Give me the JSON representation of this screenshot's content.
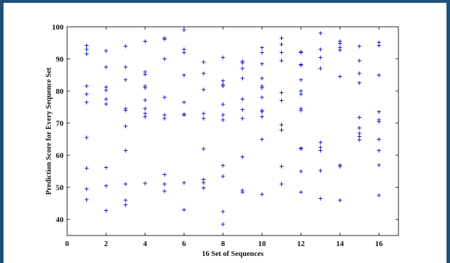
{
  "chart_data": {
    "type": "scatter",
    "title": "",
    "xlabel": "16 Set of Sequences",
    "ylabel": "Prediction Score for Every Sequence Set",
    "xlim": [
      0,
      17
    ],
    "ylim": [
      35,
      100
    ],
    "xticks": [
      0,
      2,
      4,
      6,
      8,
      10,
      12,
      14,
      16
    ],
    "yticks": [
      40,
      50,
      60,
      70,
      80,
      90,
      100
    ],
    "grid": false,
    "marker": "+",
    "marker_color": "#1a1acc",
    "series": [
      {
        "points": [
          [
            1,
            94.2
          ],
          [
            1,
            93
          ],
          [
            1,
            91.5
          ],
          [
            1,
            81.5
          ],
          [
            1,
            79
          ],
          [
            1,
            76.5
          ],
          [
            1,
            65.5
          ],
          [
            1,
            56
          ],
          [
            1,
            49.5
          ],
          [
            1,
            46.2
          ],
          [
            2,
            92.5
          ],
          [
            2,
            87.5
          ],
          [
            2,
            81.2
          ],
          [
            2,
            80.2
          ],
          [
            2,
            77.5
          ],
          [
            2,
            76
          ],
          [
            2,
            56.2
          ],
          [
            2,
            50.5
          ],
          [
            2,
            42.8
          ],
          [
            3,
            94
          ],
          [
            3,
            87.5
          ],
          [
            3,
            83.5
          ],
          [
            3,
            74.5
          ],
          [
            3,
            74
          ],
          [
            3,
            69
          ],
          [
            3,
            61.5
          ],
          [
            3,
            51
          ],
          [
            3,
            46
          ],
          [
            3,
            44.5
          ],
          [
            4,
            95.5
          ],
          [
            4,
            86
          ],
          [
            4,
            85.2
          ],
          [
            4,
            81.5
          ],
          [
            4,
            81
          ],
          [
            4,
            77.2
          ],
          [
            4,
            74.5
          ],
          [
            4,
            73
          ],
          [
            4,
            72
          ],
          [
            4,
            51.2
          ],
          [
            5,
            96.5
          ],
          [
            5,
            96.2
          ],
          [
            5,
            90
          ],
          [
            5,
            78
          ],
          [
            5,
            72.5
          ],
          [
            5,
            71.5
          ],
          [
            5,
            54
          ],
          [
            5,
            51
          ],
          [
            5,
            48.8
          ],
          [
            6,
            99
          ],
          [
            6,
            93
          ],
          [
            6,
            92
          ],
          [
            6,
            85
          ],
          [
            6,
            76.5
          ],
          [
            6,
            72.8
          ],
          [
            6,
            72.5
          ],
          [
            6,
            51.5
          ],
          [
            6,
            43
          ],
          [
            7,
            89
          ],
          [
            7,
            85.5
          ],
          [
            7,
            80.5
          ],
          [
            7,
            73
          ],
          [
            7,
            71.5
          ],
          [
            7,
            62
          ],
          [
            7,
            52.5
          ],
          [
            7,
            51.5
          ],
          [
            7,
            49.8
          ],
          [
            8,
            90.5
          ],
          [
            8,
            83.2
          ],
          [
            8,
            82
          ],
          [
            8,
            81.5
          ],
          [
            8,
            75.8
          ],
          [
            8,
            72.5
          ],
          [
            8,
            71
          ],
          [
            8,
            56.8
          ],
          [
            8,
            53.5
          ],
          [
            8,
            42.5
          ],
          [
            8,
            38.5
          ],
          [
            9,
            89.2
          ],
          [
            9,
            88.8
          ],
          [
            9,
            87
          ],
          [
            9,
            84
          ],
          [
            9,
            77.5
          ],
          [
            9,
            74.2
          ],
          [
            9,
            71.5
          ],
          [
            9,
            59.5
          ],
          [
            9,
            49
          ],
          [
            9,
            48.5
          ],
          [
            10,
            93.5
          ],
          [
            10,
            92
          ],
          [
            10,
            88.5
          ],
          [
            10,
            84
          ],
          [
            10,
            81.5
          ],
          [
            10,
            81
          ],
          [
            10,
            78
          ],
          [
            10,
            74
          ],
          [
            10,
            73.5
          ],
          [
            10,
            72
          ],
          [
            10,
            65
          ],
          [
            10,
            47.8
          ],
          [
            11,
            96.5
          ],
          [
            11,
            94.5
          ],
          [
            11,
            92
          ],
          [
            11,
            89.5
          ],
          [
            11,
            79.5
          ],
          [
            11,
            77
          ],
          [
            11,
            69.5
          ],
          [
            11,
            67.8
          ],
          [
            11,
            56.5
          ],
          [
            11,
            51
          ],
          [
            12,
            92.2
          ],
          [
            12,
            92
          ],
          [
            12,
            88.2
          ],
          [
            12,
            88
          ],
          [
            12,
            83.5
          ],
          [
            12,
            80
          ],
          [
            12,
            79
          ],
          [
            12,
            74.5
          ],
          [
            12,
            74
          ],
          [
            12,
            62.2
          ],
          [
            12,
            62
          ],
          [
            12,
            55
          ],
          [
            12,
            48.5
          ],
          [
            13,
            98
          ],
          [
            13,
            93
          ],
          [
            13,
            90.5
          ],
          [
            13,
            87
          ],
          [
            13,
            64
          ],
          [
            13,
            62.5
          ],
          [
            13,
            61.5
          ],
          [
            13,
            55.2
          ],
          [
            13,
            46.5
          ],
          [
            14,
            95.5
          ],
          [
            14,
            94.8
          ],
          [
            14,
            93.5
          ],
          [
            14,
            92.8
          ],
          [
            14,
            84.5
          ],
          [
            14,
            57
          ],
          [
            14,
            56.5
          ],
          [
            14,
            46
          ],
          [
            15,
            94
          ],
          [
            15,
            89.5
          ],
          [
            15,
            85.5
          ],
          [
            15,
            82.5
          ],
          [
            15,
            71.8
          ],
          [
            15,
            68.5
          ],
          [
            15,
            66.8
          ],
          [
            15,
            65.8
          ],
          [
            15,
            64.8
          ],
          [
            16,
            95.2
          ],
          [
            16,
            94.2
          ],
          [
            16,
            85
          ],
          [
            16,
            73.5
          ],
          [
            16,
            71
          ],
          [
            16,
            70.5
          ],
          [
            16,
            65
          ],
          [
            16,
            61.5
          ],
          [
            16,
            57
          ],
          [
            16,
            47.5
          ]
        ]
      }
    ]
  }
}
